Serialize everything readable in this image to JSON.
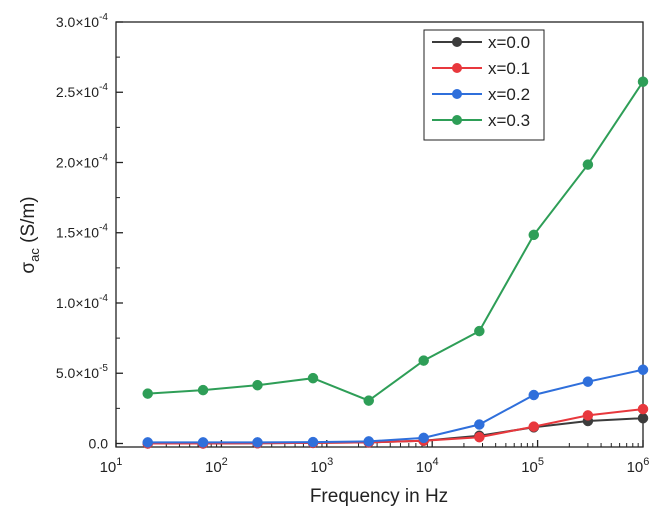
{
  "chart_data": {
    "type": "line",
    "xlabel": "Frequency in Hz",
    "ylabel": {
      "base": "σ",
      "sub": "ac",
      "rest": " (S/m)"
    },
    "xscale": "log",
    "xlim": [
      10,
      1000000
    ],
    "ylim": [
      -2.5e-06,
      0.0003
    ],
    "x_ticks": [
      {
        "value": 10,
        "base": "10",
        "exp": "1"
      },
      {
        "value": 100,
        "base": "10",
        "exp": "2"
      },
      {
        "value": 1000,
        "base": "10",
        "exp": "3"
      },
      {
        "value": 10000,
        "base": "10",
        "exp": "4"
      },
      {
        "value": 100000,
        "base": "10",
        "exp": "5"
      },
      {
        "value": 1000000,
        "base": "10",
        "exp": "6"
      }
    ],
    "y_ticks": [
      {
        "value": 0,
        "mant": "0.0",
        "exp": ""
      },
      {
        "value": 5e-05,
        "mant": "5.0×10",
        "exp": "-5"
      },
      {
        "value": 0.0001,
        "mant": "1.0×10",
        "exp": "-4"
      },
      {
        "value": 0.00015,
        "mant": "1.5×10",
        "exp": "-4"
      },
      {
        "value": 0.0002,
        "mant": "2.0×10",
        "exp": "-4"
      },
      {
        "value": 0.00025,
        "mant": "2.5×10",
        "exp": "-4"
      },
      {
        "value": 0.0003,
        "mant": "3.0×10",
        "exp": "-4"
      }
    ],
    "x": [
      20,
      67,
      220,
      740,
      2500,
      8300,
      28000,
      92000,
      300000,
      1000000
    ],
    "series": [
      {
        "name": "x=0.0",
        "color": "#3c3c3c",
        "values": [
          0.0,
          0.0,
          2e-07,
          4e-07,
          8e-07,
          2e-06,
          5.5e-06,
          1.15e-05,
          1.6e-05,
          1.8e-05
        ]
      },
      {
        "name": "x=0.1",
        "color": "#e8383d",
        "values": [
          0.0,
          0.0,
          2e-07,
          4e-07,
          8e-07,
          2e-06,
          4.5e-06,
          1.2e-05,
          2e-05,
          2.45e-05
        ]
      },
      {
        "name": "x=0.2",
        "color": "#2f6fdb",
        "values": [
          8e-07,
          8e-07,
          8e-07,
          1e-06,
          1.5e-06,
          4e-06,
          1.35e-05,
          3.45e-05,
          4.4e-05,
          5.25e-05
        ]
      },
      {
        "name": "x=0.3",
        "color": "#2e9e57",
        "values": [
          3.55e-05,
          3.8e-05,
          4.15e-05,
          4.65e-05,
          3.05e-05,
          5.9e-05,
          8e-05,
          0.0001485,
          0.0001985,
          0.0002575
        ]
      }
    ],
    "legend_position": "top-right",
    "grid": false
  }
}
